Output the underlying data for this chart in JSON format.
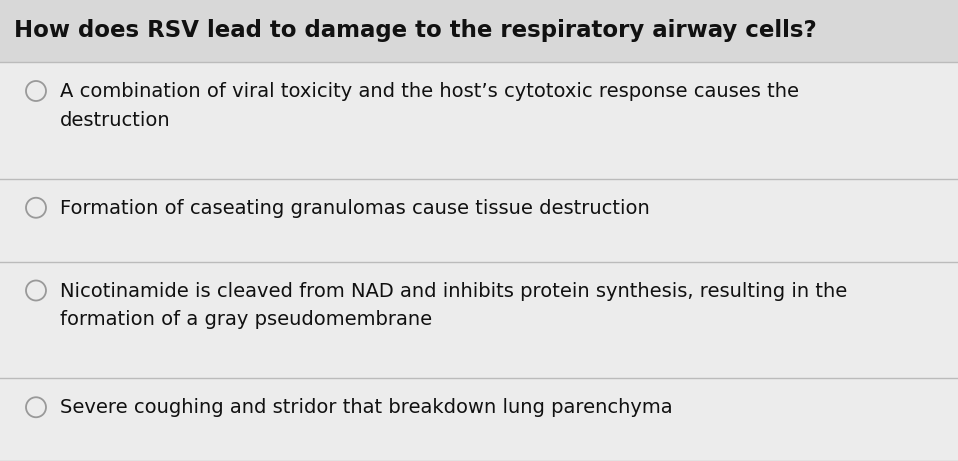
{
  "title": "How does RSV lead to damage to the respiratory airway cells?",
  "title_fontsize": 16.5,
  "title_color": "#111111",
  "title_bg_color": "#d8d8d8",
  "option_bg_color": "#ececec",
  "divider_color": "#bbbbbb",
  "text_color": "#111111",
  "circle_color": "#999999",
  "options": [
    "A combination of viral toxicity and the host’s cytotoxic response causes the\ndestruction",
    "Formation of caseating granulomas cause tissue destruction",
    "Nicotinamide is cleaved from NAD and inhibits protein synthesis, resulting in the\nformation of a gray pseudomembrane",
    "Severe coughing and stridor that breakdown lung parenchyma"
  ],
  "option_fontsize": 14.0,
  "fig_width": 9.58,
  "fig_height": 4.61,
  "dpi": 100
}
